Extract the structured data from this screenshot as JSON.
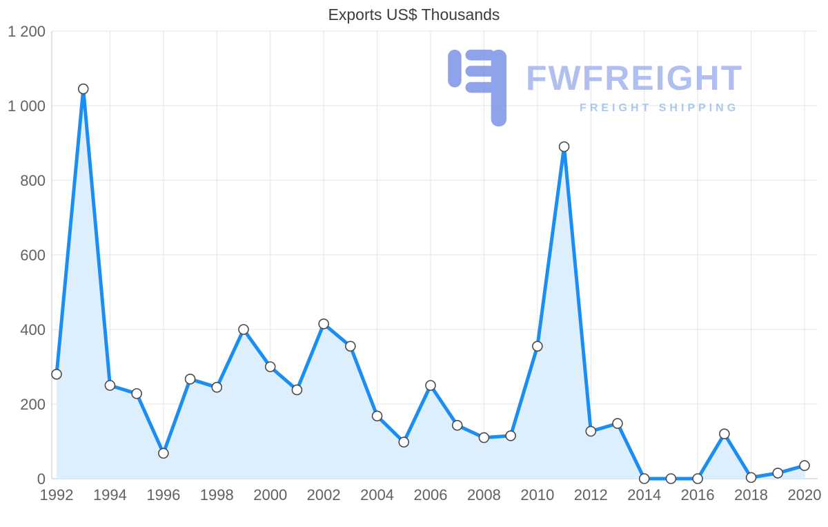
{
  "title": "Exports US$ Thousands",
  "watermark": {
    "brand": "FWFREIGHT",
    "tagline": "FREIGHT SHIPPING",
    "glyph_color": "#7b93e6",
    "brand_color": "#a3b4ec",
    "tagline_color": "#9cbfea"
  },
  "chart_data": {
    "type": "area",
    "title": "Exports US$ Thousands",
    "x": [
      1992,
      1993,
      1994,
      1995,
      1996,
      1997,
      1998,
      1999,
      2000,
      2001,
      2002,
      2003,
      2004,
      2005,
      2006,
      2007,
      2008,
      2009,
      2010,
      2011,
      2012,
      2013,
      2014,
      2015,
      2016,
      2017,
      2018,
      2019,
      2020
    ],
    "values": [
      280,
      1045,
      250,
      228,
      68,
      267,
      245,
      400,
      300,
      238,
      415,
      355,
      168,
      98,
      250,
      143,
      110,
      115,
      355,
      890,
      127,
      148,
      0,
      0,
      0,
      120,
      3,
      15,
      35
    ],
    "ylim": [
      0,
      1200
    ],
    "yticks": [
      0,
      200,
      400,
      600,
      800,
      1000,
      1200
    ],
    "ytick_labels": [
      "0",
      "200",
      "400",
      "600",
      "800",
      "1 000",
      "1 200"
    ],
    "xticks": [
      1992,
      1994,
      1996,
      1998,
      2000,
      2002,
      2004,
      2006,
      2008,
      2010,
      2012,
      2014,
      2016,
      2018,
      2020
    ],
    "grid": true,
    "legend": "none",
    "line_color": "#1d8ef1",
    "fill_color": "#ddeefd",
    "marker_fill": "#ffffff",
    "marker_stroke": "#4a4a4a",
    "grid_color": "#e4e4e4",
    "axis_color": "#c6c6c6",
    "tick_label_color": "#616161"
  }
}
